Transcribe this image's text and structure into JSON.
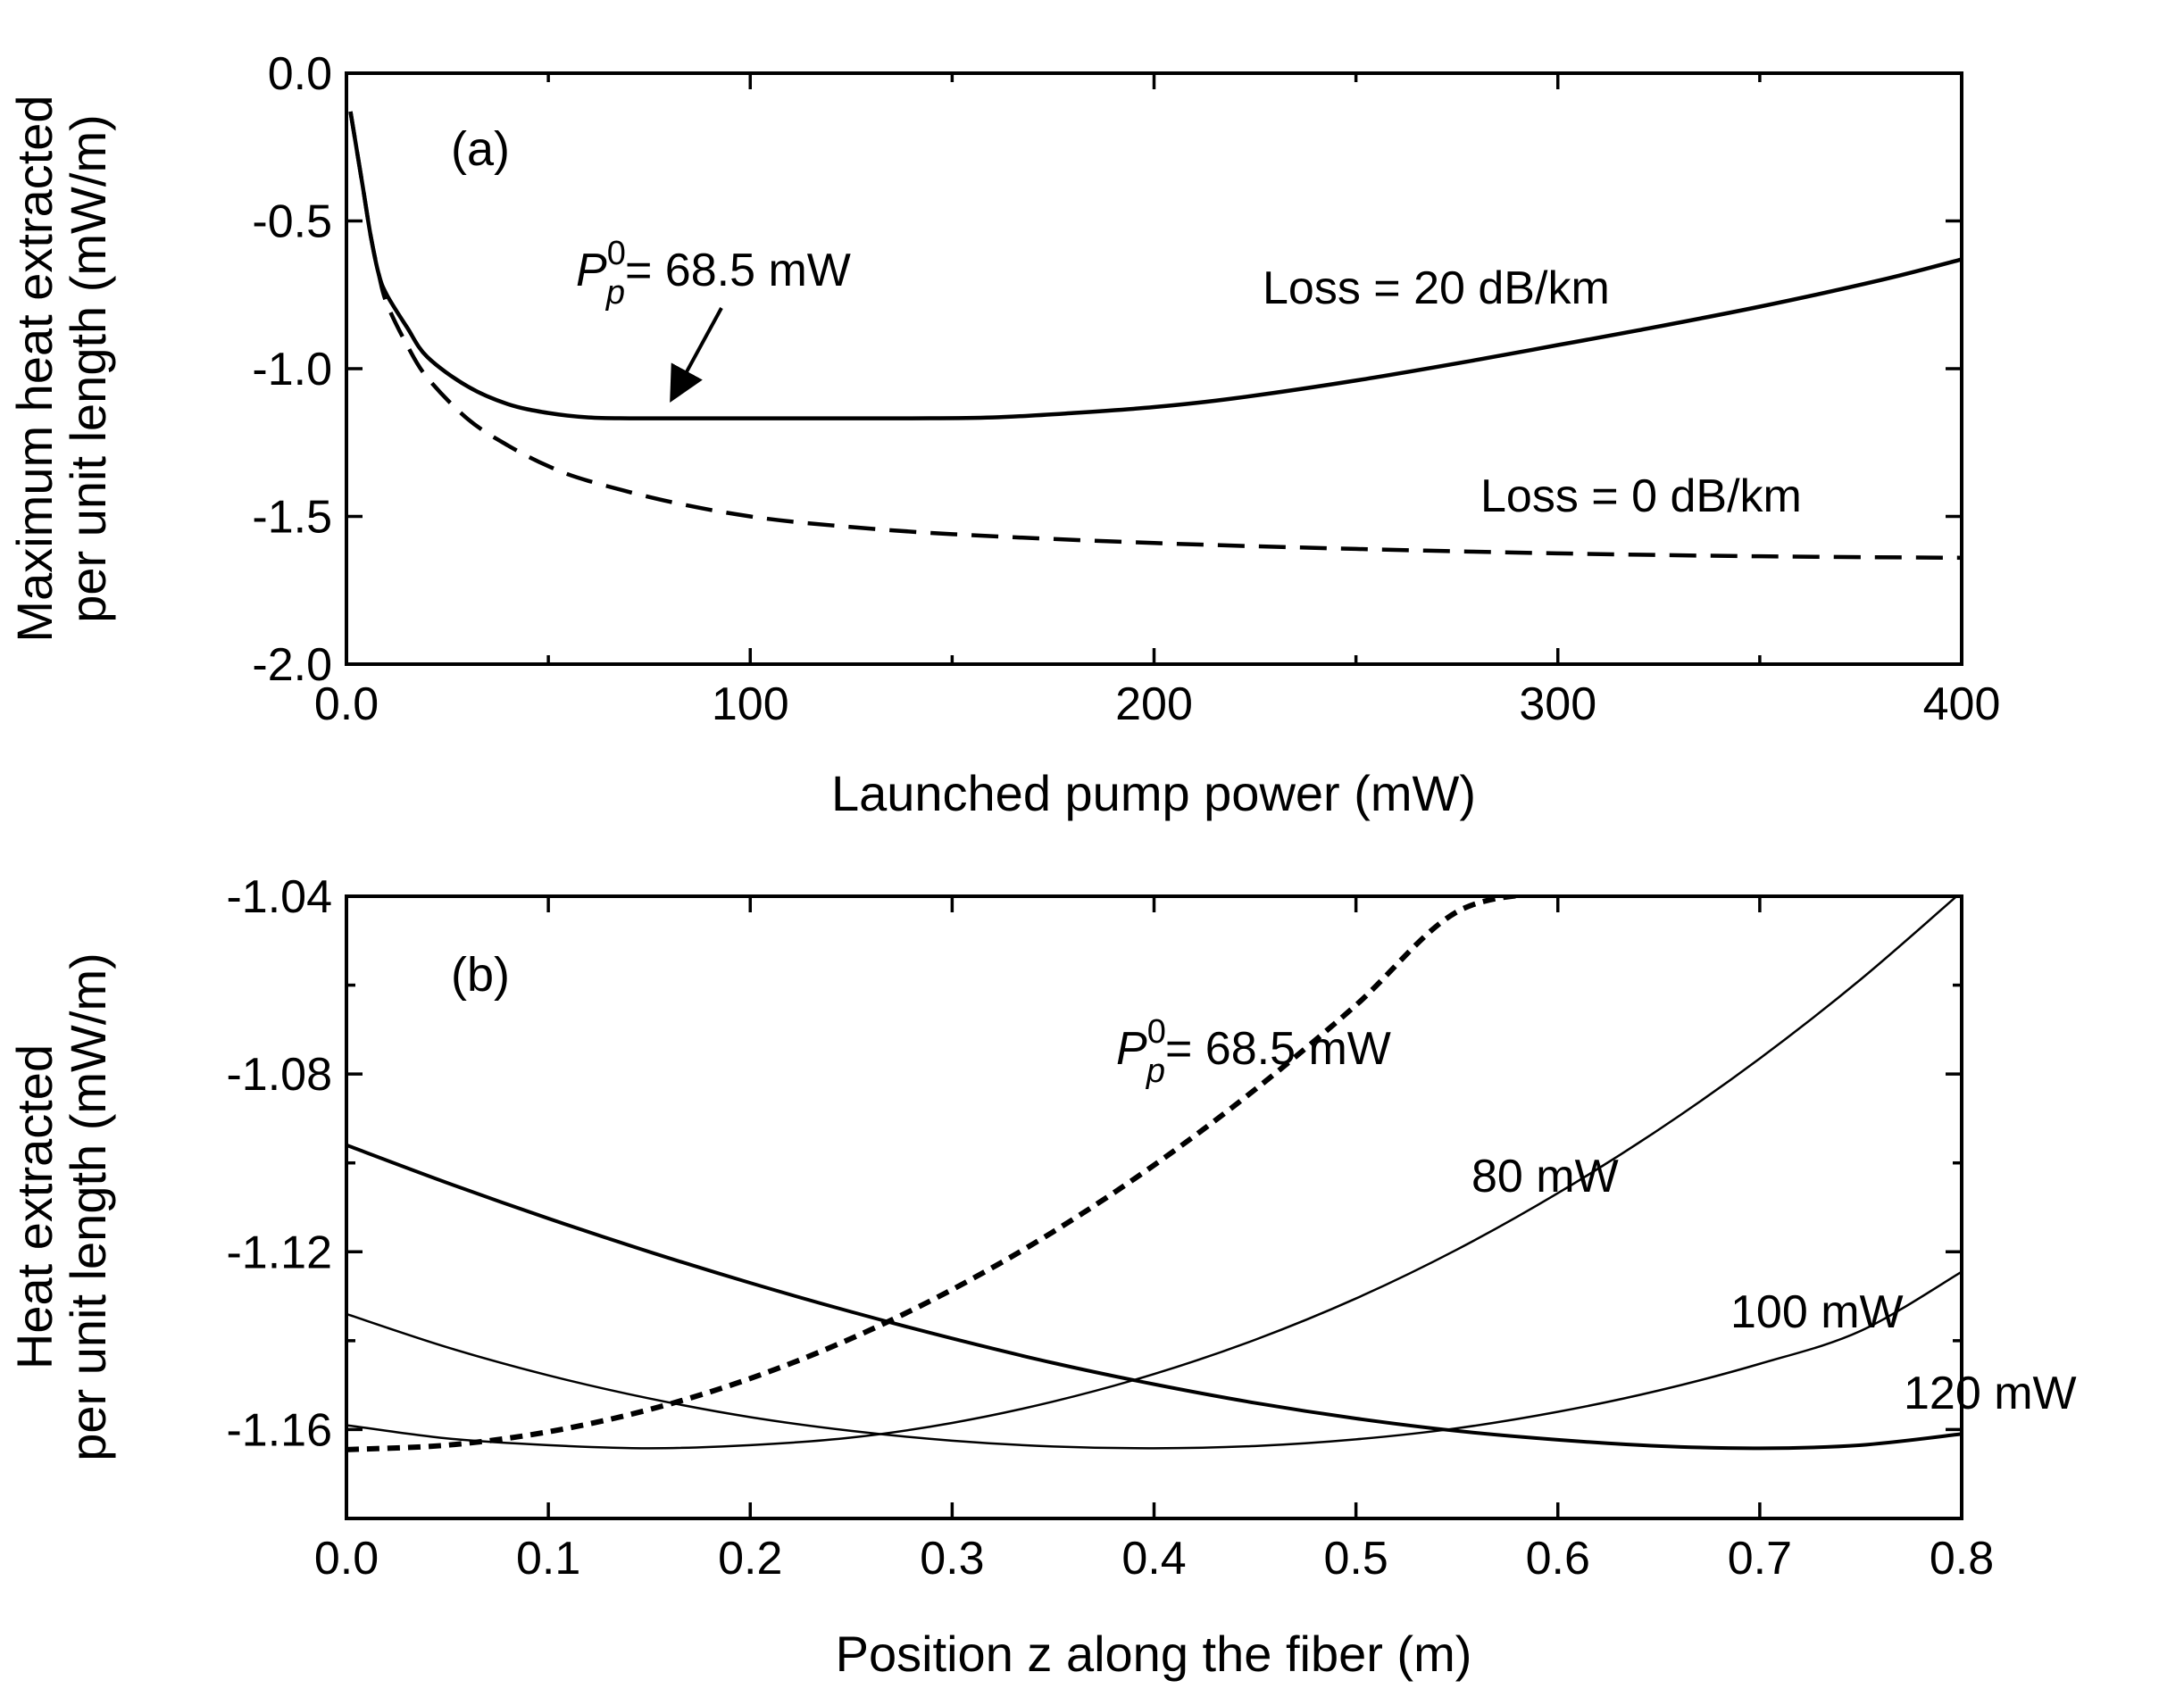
{
  "chart_data": [
    {
      "type": "line",
      "panel_label": "(a)",
      "xlabel": "Launched pump power (mW)",
      "ylabel": [
        "Maximum heat extracted",
        "per unit length (mW/m)"
      ],
      "xlim": [
        0,
        400
      ],
      "ylim": [
        -2.0,
        0.0
      ],
      "xticks": [
        0,
        100,
        200,
        300,
        400
      ],
      "xtick_labels": [
        "0.0",
        "100",
        "200",
        "300",
        "400"
      ],
      "yticks": [
        0.0,
        -0.5,
        -1.0,
        -1.5,
        -2.0
      ],
      "ytick_labels": [
        "0.0",
        "-0.5",
        "-1.0",
        "-1.5",
        "-2.0"
      ],
      "grid": false,
      "series": [
        {
          "name": "Loss = 20 dB/km",
          "style": "solid",
          "x": [
            1,
            4,
            6,
            8,
            10,
            15,
            20,
            30,
            40,
            50,
            60,
            70,
            80,
            100,
            120,
            140,
            160,
            180,
            200,
            220,
            250,
            280,
            300,
            320,
            350,
            380,
            400
          ],
          "y": [
            -0.13,
            -0.38,
            -0.55,
            -0.68,
            -0.75,
            -0.86,
            -0.96,
            -1.06,
            -1.12,
            -1.15,
            -1.165,
            -1.168,
            -1.168,
            -1.168,
            -1.168,
            -1.168,
            -1.165,
            -1.15,
            -1.13,
            -1.1,
            -1.04,
            -0.97,
            -0.92,
            -0.87,
            -0.79,
            -0.7,
            -0.63
          ]
        },
        {
          "name": "Loss = 0 dB/km",
          "style": "dashed",
          "x": [
            1,
            4,
            6,
            8,
            10,
            15,
            20,
            30,
            40,
            50,
            60,
            80,
            100,
            120,
            150,
            200,
            250,
            300,
            350,
            400
          ],
          "y": [
            -0.13,
            -0.38,
            -0.55,
            -0.68,
            -0.78,
            -0.92,
            -1.03,
            -1.17,
            -1.26,
            -1.33,
            -1.38,
            -1.45,
            -1.5,
            -1.53,
            -1.56,
            -1.59,
            -1.61,
            -1.625,
            -1.635,
            -1.64
          ]
        }
      ],
      "annotations": [
        {
          "text_main": "P",
          "text_sup": "0",
          "text_sub": "p",
          "text_rest": "= 68.5 mW",
          "points_to_x": 68.5,
          "points_to_y": -1.168
        },
        {
          "text": "Loss = 20 dB/km",
          "series": "Loss = 20 dB/km"
        },
        {
          "text": "Loss = 0 dB/km",
          "series": "Loss = 0 dB/km"
        }
      ]
    },
    {
      "type": "line",
      "panel_label": "(b)",
      "xlabel": "Position z along the fiber (m)",
      "ylabel": [
        "Heat extracted",
        "per unit length (mW/m)"
      ],
      "xlim": [
        0,
        0.8
      ],
      "ylim": [
        -1.18,
        -1.04
      ],
      "xticks": [
        0,
        0.1,
        0.2,
        0.3,
        0.4,
        0.5,
        0.6,
        0.7,
        0.8
      ],
      "xtick_labels": [
        "0.0",
        "0.1",
        "0.2",
        "0.3",
        "0.4",
        "0.5",
        "0.6",
        "0.7",
        "0.8"
      ],
      "yticks": [
        -1.04,
        -1.08,
        -1.12,
        -1.16
      ],
      "ytick_labels": [
        "-1.04",
        "-1.08",
        "-1.12",
        "-1.16"
      ],
      "grid": false,
      "series": [
        {
          "name": "P_p^0 = 68.5 mW",
          "style": "dotted-dashed",
          "x": [
            0,
            0.05,
            0.1,
            0.15,
            0.2,
            0.25,
            0.3,
            0.35,
            0.4,
            0.45,
            0.5,
            0.55,
            0.6
          ],
          "y": [
            -1.1645,
            -1.1635,
            -1.1605,
            -1.1555,
            -1.1485,
            -1.1395,
            -1.1285,
            -1.1155,
            -1.1005,
            -1.0835,
            -1.0645,
            -1.0435,
            -1.039
          ]
        },
        {
          "name": "80 mW",
          "style": "solid-thin",
          "x": [
            0,
            0.05,
            0.1,
            0.15,
            0.2,
            0.25,
            0.3,
            0.35,
            0.4,
            0.45,
            0.5,
            0.55,
            0.6,
            0.65,
            0.7,
            0.75,
            0.8
          ],
          "y": [
            -1.159,
            -1.162,
            -1.1635,
            -1.1642,
            -1.1635,
            -1.1618,
            -1.1585,
            -1.1537,
            -1.1475,
            -1.1398,
            -1.1305,
            -1.1195,
            -1.1068,
            -1.0925,
            -1.0765,
            -1.0587,
            -1.039
          ]
        },
        {
          "name": "100 mW",
          "style": "solid-thin",
          "x": [
            0,
            0.05,
            0.1,
            0.15,
            0.2,
            0.25,
            0.3,
            0.35,
            0.4,
            0.45,
            0.5,
            0.55,
            0.6,
            0.65,
            0.7,
            0.75,
            0.8
          ],
          "y": [
            -1.134,
            -1.1415,
            -1.1478,
            -1.153,
            -1.1572,
            -1.1603,
            -1.1625,
            -1.1638,
            -1.1642,
            -1.1637,
            -1.1622,
            -1.1597,
            -1.156,
            -1.1512,
            -1.1452,
            -1.1378,
            -1.1245
          ]
        },
        {
          "name": "120 mW",
          "style": "solid-thick",
          "x": [
            0,
            0.05,
            0.1,
            0.15,
            0.2,
            0.25,
            0.3,
            0.35,
            0.4,
            0.45,
            0.5,
            0.55,
            0.6,
            0.65,
            0.7,
            0.75,
            0.8
          ],
          "y": [
            -1.096,
            -1.1045,
            -1.1125,
            -1.12,
            -1.127,
            -1.1335,
            -1.1395,
            -1.145,
            -1.1498,
            -1.154,
            -1.1575,
            -1.1603,
            -1.1623,
            -1.1637,
            -1.1642,
            -1.1635,
            -1.161
          ]
        }
      ],
      "annotations": [
        {
          "text_main": "P",
          "text_sup": "0",
          "text_sub": "p",
          "text_rest": "= 68.5 mW",
          "series": "P_p^0 = 68.5 mW"
        },
        {
          "text": "80 mW",
          "series": "80 mW"
        },
        {
          "text": "100 mW",
          "series": "100 mW"
        },
        {
          "text": "120 mW",
          "series": "120 mW"
        }
      ]
    }
  ]
}
